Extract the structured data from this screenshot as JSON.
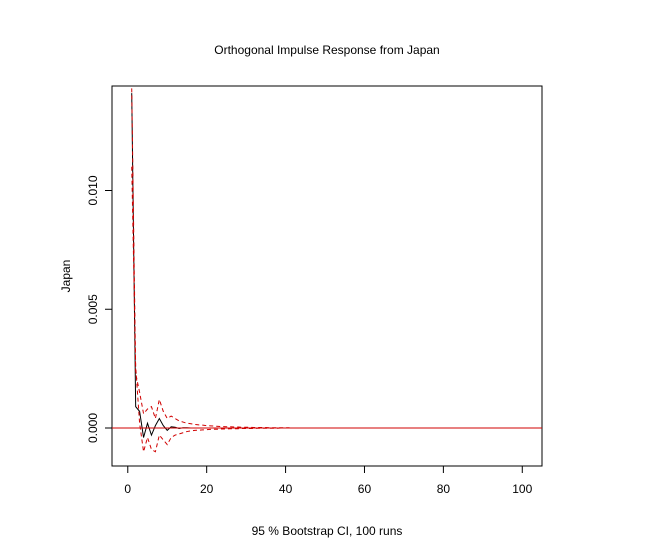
{
  "chart_data": {
    "type": "line",
    "title": "Orthogonal Impulse Response from Japan",
    "xlabel": "95 % Bootstrap CI,  100 runs",
    "ylabel": "Japan",
    "xlim": [
      -4,
      105
    ],
    "ylim": [
      -0.0016,
      0.0144
    ],
    "x_ticks": [
      0,
      20,
      40,
      60,
      80,
      100
    ],
    "x_tick_labels": [
      "0",
      "20",
      "40",
      "60",
      "80",
      "100"
    ],
    "y_ticks": [
      0.0,
      0.005,
      0.01
    ],
    "y_tick_labels": [
      "0.000",
      "0.005",
      "0.010"
    ],
    "grid": false,
    "legend": "none",
    "reference_line": {
      "y": 0,
      "color": "#d00000"
    },
    "series": [
      {
        "color": "#000000",
        "style": "solid",
        "x": [
          1,
          2,
          3,
          4,
          5,
          6,
          7,
          8,
          9,
          10,
          11,
          12,
          13,
          14,
          15,
          16,
          17,
          18,
          19,
          20,
          21,
          22,
          23,
          24,
          25,
          26,
          27,
          28,
          29,
          30,
          31,
          32,
          33,
          34,
          35,
          36,
          37,
          38,
          39,
          40,
          41
        ],
        "values": [
          0.0141,
          0.0009,
          0.0007,
          -0.0004,
          0.0002,
          -0.0003,
          0.0001,
          0.0004,
          0.0001,
          -0.0001,
          5e-05,
          3e-05,
          -2e-05,
          1e-05,
          1e-05,
          0,
          0,
          0,
          0,
          0,
          0,
          0,
          0,
          0,
          0,
          0,
          0,
          0,
          0,
          0,
          0,
          0,
          0,
          0,
          0,
          0,
          0,
          0,
          0,
          0,
          0
        ]
      },
      {
        "color": "#d00000",
        "style": "dashed",
        "x": [
          1,
          2,
          3,
          4,
          5,
          6,
          7,
          8,
          9,
          10,
          11,
          12,
          13,
          14,
          15,
          16,
          17,
          18,
          19,
          20,
          21,
          22,
          23,
          24,
          25,
          26,
          27,
          28,
          29,
          30,
          31,
          32,
          33,
          34,
          35,
          36,
          37,
          38,
          39,
          40,
          41
        ],
        "values": [
          0.0143,
          0.0023,
          0.0015,
          0.0006,
          0.0008,
          0.0009,
          0.0004,
          0.0012,
          0.0007,
          0.0004,
          0.0005,
          0.0004,
          0.0003,
          0.00025,
          0.0002,
          0.00018,
          0.00015,
          0.00013,
          0.00012,
          0.0001,
          9e-05,
          8e-05,
          7e-05,
          6e-05,
          5e-05,
          5e-05,
          4e-05,
          4e-05,
          3e-05,
          3e-05,
          3e-05,
          2e-05,
          2e-05,
          2e-05,
          2e-05,
          1e-05,
          1e-05,
          1e-05,
          1e-05,
          1e-05,
          1e-05
        ]
      },
      {
        "color": "#d00000",
        "style": "dashed",
        "x": [
          1,
          2,
          3,
          4,
          5,
          6,
          7,
          8,
          9,
          10,
          11,
          12,
          13,
          14,
          15,
          16,
          17,
          18,
          19,
          20,
          21,
          22,
          23,
          24,
          25,
          26,
          27,
          28,
          29,
          30,
          31,
          32,
          33,
          34,
          35,
          36,
          37,
          38,
          39,
          40,
          41
        ],
        "values": [
          0.011,
          0.0026,
          0.0002,
          -0.001,
          -0.0004,
          -0.0009,
          -0.001,
          -0.0003,
          -0.0005,
          -0.0007,
          -0.0004,
          -0.0003,
          -0.00025,
          -0.0002,
          -0.00015,
          -0.00012,
          -0.0001,
          -9e-05,
          -8e-05,
          -7e-05,
          -6e-05,
          -5e-05,
          -5e-05,
          -4e-05,
          -4e-05,
          -3e-05,
          -3e-05,
          -3e-05,
          -2e-05,
          -2e-05,
          -2e-05,
          -2e-05,
          -1e-05,
          -1e-05,
          -1e-05,
          -1e-05,
          -1e-05,
          -1e-05,
          0,
          0,
          0
        ]
      }
    ]
  }
}
